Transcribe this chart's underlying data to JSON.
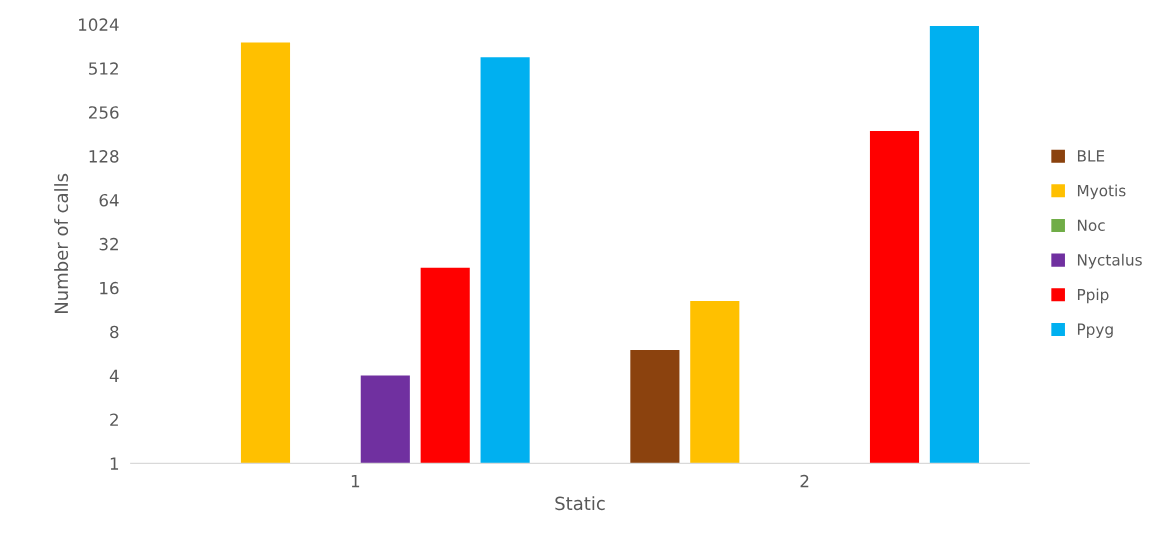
{
  "chart_data": {
    "type": "bar",
    "xlabel": "Static",
    "ylabel": "Number of calls",
    "categories": [
      "1",
      "2"
    ],
    "series": [
      {
        "name": "BLE",
        "color": "#8b420e",
        "values": [
          null,
          6
        ]
      },
      {
        "name": "Myotis",
        "color": "#ffc000",
        "values": [
          770,
          13
        ]
      },
      {
        "name": "Noc",
        "color": "#70ad47",
        "values": [
          null,
          null
        ]
      },
      {
        "name": "Nyctalus",
        "color": "#7030a0",
        "values": [
          4,
          null
        ]
      },
      {
        "name": "Ppip",
        "color": "#ff0000",
        "values": [
          22,
          190
        ]
      },
      {
        "name": "Ppyg",
        "color": "#00b0f0",
        "values": [
          610,
          1000
        ]
      }
    ],
    "log": true,
    "ylim": [
      1,
      1024
    ],
    "yticks": [
      1,
      2,
      4,
      8,
      16,
      32,
      64,
      128,
      256,
      512,
      1024
    ],
    "grid": false,
    "legend": "right"
  }
}
